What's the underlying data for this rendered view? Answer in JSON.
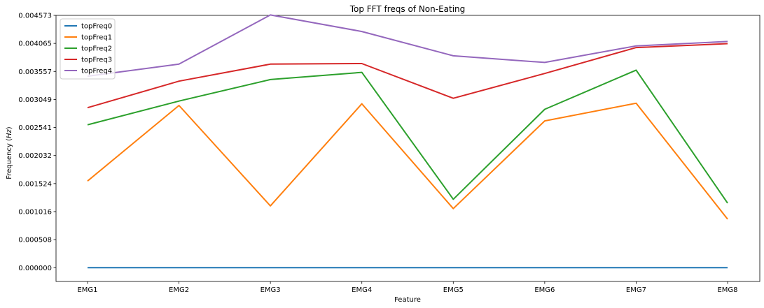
{
  "chart_data": {
    "type": "line",
    "title": "Top FFT freqs of Non-Eating",
    "xlabel": "Feature",
    "ylabel": "Frequency (Hz)",
    "ylabel_prefix": "Frequency (",
    "ylabel_unit": "Hz",
    "ylabel_suffix": ")",
    "categories": [
      "EMG1",
      "EMG2",
      "EMG3",
      "EMG4",
      "EMG5",
      "EMG6",
      "EMG7",
      "EMG8"
    ],
    "yticks": [
      "0.000000",
      "0.000508",
      "0.001016",
      "0.001524",
      "0.002032",
      "0.002541",
      "0.003049",
      "0.003557",
      "0.004065",
      "0.004573"
    ],
    "ylim": [
      -0.00025,
      0.004573
    ],
    "grid": false,
    "legend_position": "top-left",
    "series": [
      {
        "name": "topFreq0",
        "color": "#1f77b4",
        "values": [
          0.0,
          0.0,
          0.0,
          0.0,
          0.0,
          0.0,
          0.0,
          0.0
        ]
      },
      {
        "name": "topFreq1",
        "color": "#ff7f0e",
        "values": [
          0.00157,
          0.00294,
          0.00112,
          0.00297,
          0.00107,
          0.00266,
          0.00298,
          0.00088
        ]
      },
      {
        "name": "topFreq2",
        "color": "#2ca02c",
        "values": [
          0.00259,
          0.00302,
          0.00341,
          0.00354,
          0.00124,
          0.00287,
          0.00358,
          0.00117
        ]
      },
      {
        "name": "topFreq3",
        "color": "#d62728",
        "values": [
          0.0029,
          0.00338,
          0.00369,
          0.0037,
          0.00307,
          0.00352,
          0.00399,
          0.00406
        ]
      },
      {
        "name": "topFreq4",
        "color": "#9467bd",
        "values": [
          0.00347,
          0.00369,
          0.00458,
          0.00428,
          0.00384,
          0.00372,
          0.00402,
          0.0041
        ]
      }
    ]
  }
}
